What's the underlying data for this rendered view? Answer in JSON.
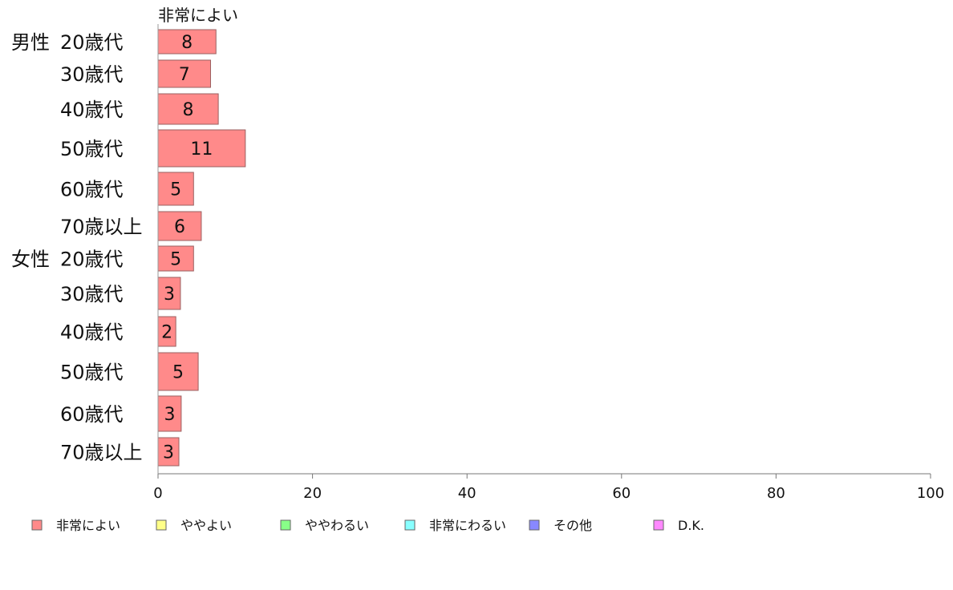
{
  "chart_data": {
    "type": "bar",
    "orientation": "horizontal",
    "top_series_label": "非常によい",
    "groups": [
      "男性",
      "女性"
    ],
    "categories": [
      {
        "group": "男性",
        "label": "20歳代"
      },
      {
        "group": "",
        "label": "30歳代"
      },
      {
        "group": "",
        "label": "40歳代"
      },
      {
        "group": "",
        "label": "50歳代"
      },
      {
        "group": "",
        "label": "60歳代"
      },
      {
        "group": "",
        "label": "70歳以上"
      },
      {
        "group": "女性",
        "label": "20歳代"
      },
      {
        "group": "",
        "label": "30歳代"
      },
      {
        "group": "",
        "label": "40歳代"
      },
      {
        "group": "",
        "label": "50歳代"
      },
      {
        "group": "",
        "label": "60歳代"
      },
      {
        "group": "",
        "label": "70歳以上"
      }
    ],
    "series": [
      {
        "name": "非常によい",
        "color": "#ff8a8a",
        "values": [
          7.5,
          6.8,
          7.8,
          11.3,
          4.6,
          5.6,
          4.6,
          2.9,
          2.3,
          5.2,
          3.0,
          2.7
        ]
      }
    ],
    "value_labels": [
      "8",
      "7",
      "8",
      "11",
      "5",
      "6",
      "5",
      "3",
      "2",
      "5",
      "3",
      "3"
    ],
    "xlim": [
      0,
      100
    ],
    "xticks": [
      "0",
      "20",
      "40",
      "60",
      "80",
      "100"
    ],
    "legend_position": "bottom",
    "legend": [
      {
        "label": "非常によい",
        "color": "#ff8a8a"
      },
      {
        "label": "ややよい",
        "color": "#ffff88"
      },
      {
        "label": "ややわるい",
        "color": "#88ff88"
      },
      {
        "label": "非常にわるい",
        "color": "#88ffff"
      },
      {
        "label": "その他",
        "color": "#8888ff"
      },
      {
        "label": "D.K.",
        "color": "#ff88ff"
      }
    ],
    "grid": false
  }
}
